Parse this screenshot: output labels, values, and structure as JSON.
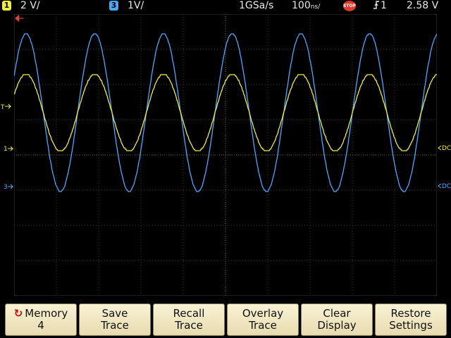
{
  "status": {
    "ch1_label": "1",
    "ch1_scale": "2 V/",
    "ch3_label": "3",
    "ch3_scale": "1V/",
    "sample_rate": "1GSa/s",
    "timebase": "100",
    "timebase_unit": "ns/",
    "run_state": "STOP",
    "trigger_source": "1",
    "trigger_level": "2.58 V",
    "ch1_color": "#f2ee3a",
    "ch3_color": "#4aa8ff"
  },
  "markers": {
    "left_t": "T",
    "left_1": "1",
    "left_3": "3",
    "right_dc1": "DC",
    "right_dc3": "DC"
  },
  "softkeys": [
    {
      "line1": "Memory",
      "line2": "4",
      "icon": "recall-icon"
    },
    {
      "line1": "Save",
      "line2": "Trace"
    },
    {
      "line1": "Recall",
      "line2": "Trace"
    },
    {
      "line1": "Overlay",
      "line2": "Trace"
    },
    {
      "line1": "Clear",
      "line2": "Display"
    },
    {
      "line1": "Restore",
      "line2": "Settings"
    }
  ]
}
